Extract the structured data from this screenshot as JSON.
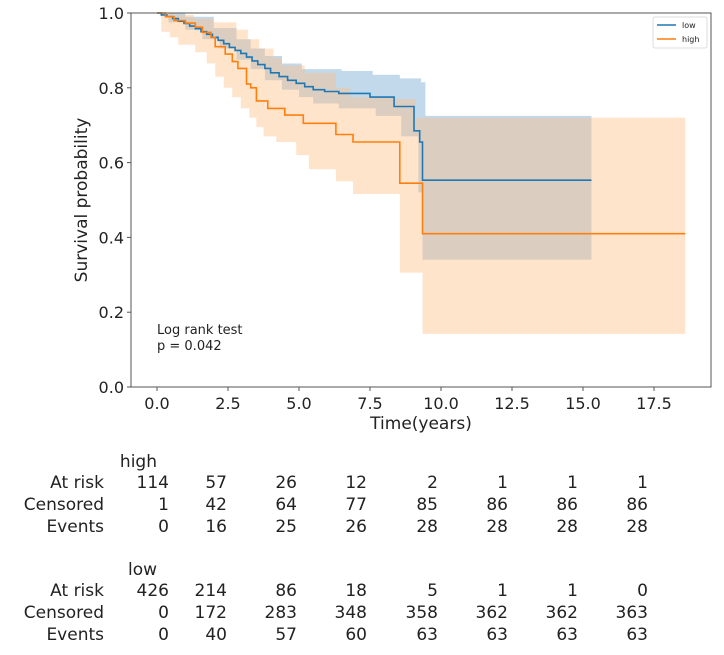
{
  "chart_data": {
    "type": "line",
    "subtype": "kaplan-meier",
    "title": "",
    "xlabel": "Time(years)",
    "ylabel": "Survival probability",
    "xlim": [
      -0.9,
      19.6
    ],
    "ylim": [
      0.0,
      1.0
    ],
    "xticks": [
      "0.0",
      "2.5",
      "5.0",
      "7.5",
      "10.0",
      "12.5",
      "15.0",
      "17.5"
    ],
    "xtick_values": [
      0,
      2.5,
      5,
      7.5,
      10,
      12.5,
      15,
      17.5
    ],
    "yticks": [
      "0.0",
      "0.2",
      "0.4",
      "0.6",
      "0.8",
      "1.0"
    ],
    "ytick_values": [
      0,
      0.2,
      0.4,
      0.6,
      0.8,
      1.0
    ],
    "grid": false,
    "legend_position": "top-right",
    "annotation": {
      "line1": "Log rank test",
      "line2": "p = 0.042"
    },
    "series": [
      {
        "name": "low",
        "color": "#1f77b4",
        "ci_color": "#1f77b4",
        "steps": [
          [
            0,
            1.0
          ],
          [
            0.15,
            0.995
          ],
          [
            0.35,
            0.99
          ],
          [
            0.55,
            0.985
          ],
          [
            0.75,
            0.978
          ],
          [
            0.95,
            0.972
          ],
          [
            1.15,
            0.965
          ],
          [
            1.35,
            0.958
          ],
          [
            1.55,
            0.95
          ],
          [
            1.75,
            0.943
          ],
          [
            1.95,
            0.935
          ],
          [
            2.15,
            0.927
          ],
          [
            2.35,
            0.918
          ],
          [
            2.55,
            0.908
          ],
          [
            2.75,
            0.9
          ],
          [
            2.95,
            0.892
          ],
          [
            3.15,
            0.882
          ],
          [
            3.35,
            0.872
          ],
          [
            3.55,
            0.862
          ],
          [
            3.8,
            0.852
          ],
          [
            4.0,
            0.84
          ],
          [
            4.3,
            0.83
          ],
          [
            4.6,
            0.82
          ],
          [
            4.9,
            0.812
          ],
          [
            5.2,
            0.803
          ],
          [
            5.5,
            0.795
          ],
          [
            5.9,
            0.79
          ],
          [
            6.4,
            0.785
          ],
          [
            7.5,
            0.775
          ],
          [
            8.35,
            0.75
          ],
          [
            9.05,
            0.685
          ],
          [
            9.25,
            0.655
          ],
          [
            9.35,
            0.553
          ],
          [
            15.3,
            0.553
          ]
        ],
        "ci_upper": [
          [
            0,
            1.0
          ],
          [
            1.0,
            0.99
          ],
          [
            2.0,
            0.96
          ],
          [
            2.8,
            0.93
          ],
          [
            3.3,
            0.905
          ],
          [
            3.8,
            0.885
          ],
          [
            4.4,
            0.865
          ],
          [
            5.1,
            0.85
          ],
          [
            6.5,
            0.845
          ],
          [
            7.6,
            0.835
          ],
          [
            8.55,
            0.825
          ],
          [
            9.3,
            0.815
          ],
          [
            9.45,
            0.725
          ],
          [
            15.3,
            0.725
          ]
        ],
        "ci_lower": [
          [
            0,
            1.0
          ],
          [
            0.4,
            0.975
          ],
          [
            1.0,
            0.955
          ],
          [
            1.6,
            0.93
          ],
          [
            2.2,
            0.905
          ],
          [
            2.8,
            0.875
          ],
          [
            3.3,
            0.85
          ],
          [
            3.8,
            0.82
          ],
          [
            4.4,
            0.795
          ],
          [
            5.0,
            0.775
          ],
          [
            5.5,
            0.758
          ],
          [
            6.4,
            0.745
          ],
          [
            7.7,
            0.725
          ],
          [
            8.6,
            0.67
          ],
          [
            9.2,
            0.52
          ],
          [
            9.35,
            0.34
          ],
          [
            15.3,
            0.34
          ]
        ]
      },
      {
        "name": "high",
        "color": "#ff7f0e",
        "ci_color": "#ffbe86",
        "steps": [
          [
            0,
            1.0
          ],
          [
            0.3,
            0.99
          ],
          [
            0.6,
            0.98
          ],
          [
            1.0,
            0.973
          ],
          [
            1.35,
            0.962
          ],
          [
            1.6,
            0.948
          ],
          [
            1.9,
            0.935
          ],
          [
            2.05,
            0.91
          ],
          [
            2.4,
            0.89
          ],
          [
            2.65,
            0.87
          ],
          [
            2.85,
            0.852
          ],
          [
            3.15,
            0.81
          ],
          [
            3.3,
            0.8
          ],
          [
            3.5,
            0.765
          ],
          [
            3.9,
            0.745
          ],
          [
            4.5,
            0.727
          ],
          [
            5.15,
            0.705
          ],
          [
            6.3,
            0.675
          ],
          [
            6.9,
            0.655
          ],
          [
            8.55,
            0.545
          ],
          [
            9.35,
            0.41
          ],
          [
            18.6,
            0.41
          ]
        ],
        "ci_upper": [
          [
            0,
            1.0
          ],
          [
            0.6,
            0.995
          ],
          [
            1.3,
            0.985
          ],
          [
            2.0,
            0.975
          ],
          [
            2.8,
            0.955
          ],
          [
            3.2,
            0.93
          ],
          [
            3.6,
            0.905
          ],
          [
            4.1,
            0.88
          ],
          [
            4.4,
            0.86
          ],
          [
            5.2,
            0.84
          ],
          [
            6.3,
            0.8
          ],
          [
            6.8,
            0.775
          ],
          [
            8.4,
            0.77
          ],
          [
            9.1,
            0.72
          ],
          [
            18.6,
            0.66
          ]
        ],
        "ci_lower": [
          [
            0,
            1.0
          ],
          [
            0.15,
            0.95
          ],
          [
            0.45,
            0.935
          ],
          [
            0.75,
            0.915
          ],
          [
            1.35,
            0.895
          ],
          [
            1.75,
            0.865
          ],
          [
            2.05,
            0.83
          ],
          [
            2.35,
            0.8
          ],
          [
            2.65,
            0.775
          ],
          [
            2.95,
            0.745
          ],
          [
            3.25,
            0.72
          ],
          [
            3.5,
            0.695
          ],
          [
            3.75,
            0.67
          ],
          [
            4.2,
            0.655
          ],
          [
            4.9,
            0.62
          ],
          [
            5.35,
            0.582
          ],
          [
            6.3,
            0.55
          ],
          [
            6.9,
            0.516
          ],
          [
            8.55,
            0.306
          ],
          [
            9.35,
            0.142
          ],
          [
            18.6,
            0.142
          ]
        ]
      }
    ],
    "at_risk_table": {
      "time_points": [
        0,
        2.5,
        5,
        7.5,
        10,
        12.5,
        15,
        17.5
      ],
      "row_labels": [
        "At risk",
        "Censored",
        "Events"
      ],
      "groups": [
        {
          "name": "high",
          "at_risk": [
            114,
            57,
            26,
            12,
            2,
            1,
            1,
            1
          ],
          "censored": [
            1,
            42,
            64,
            77,
            85,
            86,
            86,
            86
          ],
          "events": [
            0,
            16,
            25,
            26,
            28,
            28,
            28,
            28
          ]
        },
        {
          "name": "low",
          "at_risk": [
            426,
            214,
            86,
            18,
            5,
            1,
            1,
            0
          ],
          "censored": [
            0,
            172,
            283,
            348,
            358,
            362,
            362,
            363
          ],
          "events": [
            0,
            40,
            57,
            60,
            63,
            63,
            63,
            63
          ]
        }
      ]
    }
  }
}
